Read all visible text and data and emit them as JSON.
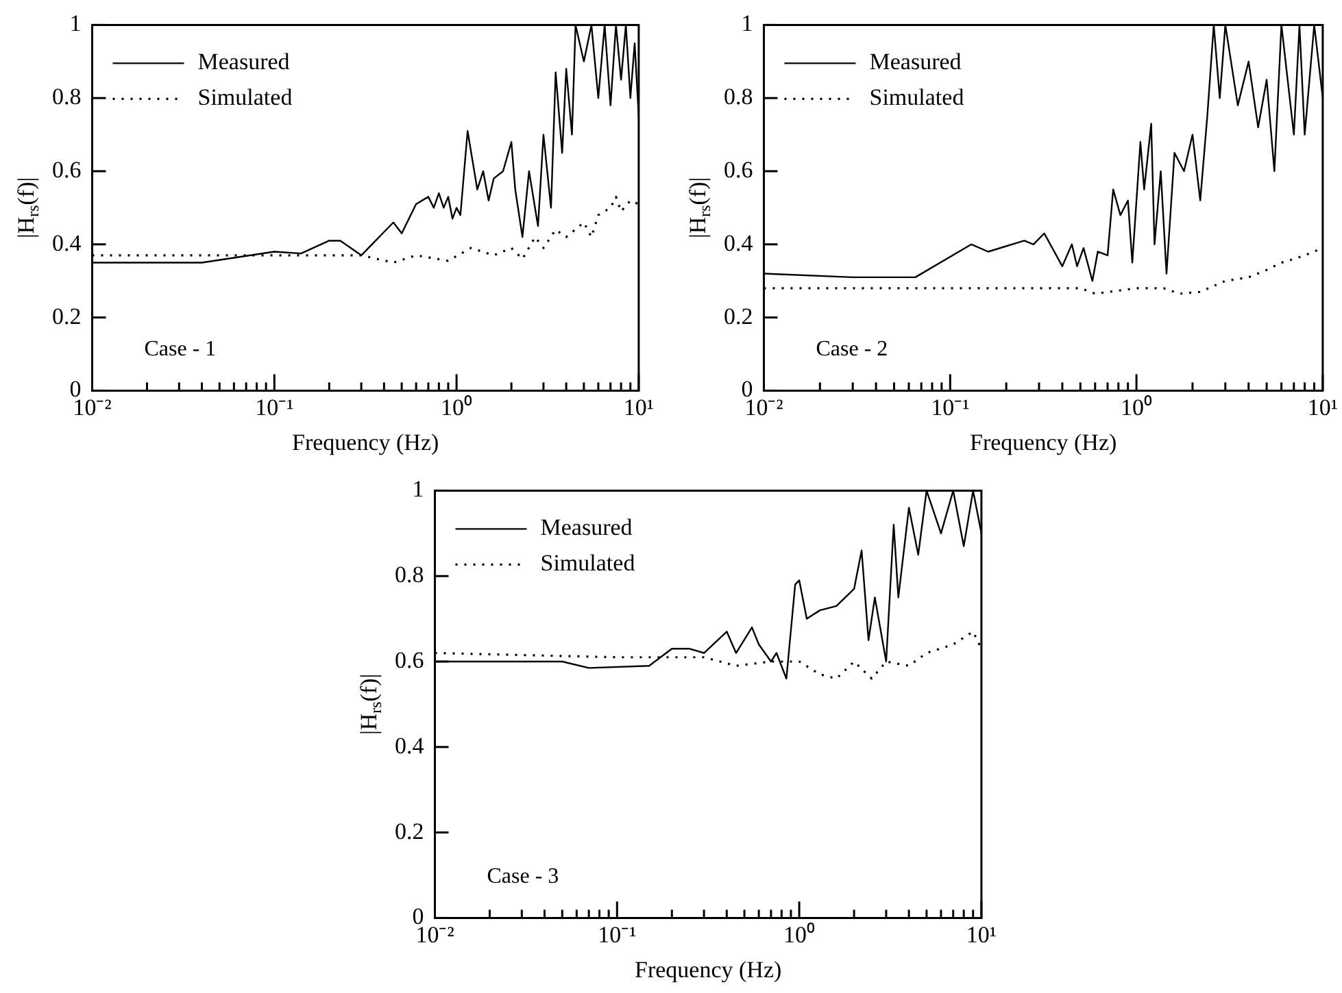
{
  "chart_data": [
    {
      "type": "line",
      "xlabel": "Frequency (Hz)",
      "ylabel": "|H$_{rs}$(f)|",
      "log": "x",
      "grid": false,
      "legend": "top left",
      "xlim": [
        0.01,
        10
      ],
      "ylim": [
        0,
        1
      ],
      "yticks": [
        0,
        0.2,
        0.4,
        0.6,
        0.8,
        1
      ],
      "xticks": [
        {
          "value": 0.01,
          "label": "10⁻²"
        },
        {
          "value": 0.02,
          "label": null
        },
        {
          "value": 0.03,
          "label": null
        },
        {
          "value": 0.04,
          "label": null
        },
        {
          "value": 0.05,
          "label": null
        },
        {
          "value": 0.06,
          "label": null
        },
        {
          "value": 0.07,
          "label": null
        },
        {
          "value": 0.08,
          "label": null
        },
        {
          "value": 0.09,
          "label": null
        },
        {
          "value": 0.1,
          "label": "10⁻¹"
        },
        {
          "value": 0.2,
          "label": null
        },
        {
          "value": 0.3,
          "label": null
        },
        {
          "value": 0.4,
          "label": null
        },
        {
          "value": 0.5,
          "label": null
        },
        {
          "value": 0.6,
          "label": null
        },
        {
          "value": 0.7,
          "label": null
        },
        {
          "value": 0.8,
          "label": null
        },
        {
          "value": 0.9,
          "label": null
        },
        {
          "value": 1,
          "label": "10⁰"
        },
        {
          "value": 2,
          "label": null
        },
        {
          "value": 3,
          "label": null
        },
        {
          "value": 4,
          "label": null
        },
        {
          "value": 5,
          "label": null
        },
        {
          "value": 6,
          "label": null
        },
        {
          "value": 7,
          "label": null
        },
        {
          "value": 8,
          "label": null
        },
        {
          "value": 9,
          "label": null
        },
        {
          "value": 10,
          "label": "10¹"
        }
      ],
      "annotations": [
        "Case - 1"
      ],
      "series": [
        {
          "name": "Measured",
          "color": "#000000",
          "line_style": "solid",
          "x": [
            0.01,
            0.04,
            0.1,
            0.14,
            0.2,
            0.23,
            0.3,
            0.45,
            0.5,
            0.6,
            0.7,
            0.75,
            0.8,
            0.85,
            0.9,
            0.95,
            1.0,
            1.05,
            1.15,
            1.3,
            1.4,
            1.5,
            1.6,
            1.8,
            2.0,
            2.1,
            2.3,
            2.5,
            2.8,
            3.0,
            3.3,
            3.5,
            3.8,
            4.0,
            4.3,
            4.5,
            5.0,
            5.5,
            6,
            6.5,
            7,
            7.5,
            8,
            8.5,
            9,
            9.5,
            10
          ],
          "values": [
            0.35,
            0.35,
            0.38,
            0.375,
            0.41,
            0.41,
            0.37,
            0.46,
            0.43,
            0.51,
            0.53,
            0.5,
            0.54,
            0.5,
            0.53,
            0.47,
            0.5,
            0.48,
            0.71,
            0.55,
            0.6,
            0.52,
            0.58,
            0.6,
            0.68,
            0.55,
            0.42,
            0.6,
            0.45,
            0.7,
            0.5,
            0.87,
            0.65,
            0.88,
            0.7,
            1.0,
            0.9,
            1.0,
            0.8,
            1.0,
            0.78,
            1.0,
            0.85,
            1.0,
            0.8,
            0.95,
            0.75
          ]
        },
        {
          "name": "Simulated",
          "color": "#000000",
          "line_style": "dotted",
          "x": [
            0.01,
            0.1,
            0.3,
            0.45,
            0.6,
            0.9,
            1.2,
            1.6,
            2.0,
            2.3,
            2.7,
            3.0,
            3.5,
            4.0,
            5.0,
            5.5,
            6,
            7,
            7.5,
            8,
            9,
            10
          ],
          "values": [
            0.37,
            0.37,
            0.37,
            0.35,
            0.37,
            0.355,
            0.39,
            0.37,
            0.39,
            0.36,
            0.42,
            0.39,
            0.44,
            0.42,
            0.46,
            0.42,
            0.48,
            0.5,
            0.53,
            0.49,
            0.52,
            0.51
          ]
        }
      ]
    },
    {
      "type": "line",
      "xlabel": "Frequency (Hz)",
      "ylabel": "|H$_{rs}$(f)|",
      "log": "x",
      "grid": false,
      "legend": "top left",
      "xlim": [
        0.01,
        10
      ],
      "ylim": [
        0,
        1
      ],
      "yticks": [
        0,
        0.2,
        0.4,
        0.6,
        0.8,
        1
      ],
      "xticks": [
        {
          "value": 0.01,
          "label": "10⁻²"
        },
        {
          "value": 0.02,
          "label": null
        },
        {
          "value": 0.03,
          "label": null
        },
        {
          "value": 0.04,
          "label": null
        },
        {
          "value": 0.05,
          "label": null
        },
        {
          "value": 0.06,
          "label": null
        },
        {
          "value": 0.07,
          "label": null
        },
        {
          "value": 0.08,
          "label": null
        },
        {
          "value": 0.09,
          "label": null
        },
        {
          "value": 0.1,
          "label": "10⁻¹"
        },
        {
          "value": 0.2,
          "label": null
        },
        {
          "value": 0.3,
          "label": null
        },
        {
          "value": 0.4,
          "label": null
        },
        {
          "value": 0.5,
          "label": null
        },
        {
          "value": 0.6,
          "label": null
        },
        {
          "value": 0.7,
          "label": null
        },
        {
          "value": 0.8,
          "label": null
        },
        {
          "value": 0.9,
          "label": null
        },
        {
          "value": 1,
          "label": "10⁰"
        },
        {
          "value": 2,
          "label": null
        },
        {
          "value": 3,
          "label": null
        },
        {
          "value": 4,
          "label": null
        },
        {
          "value": 5,
          "label": null
        },
        {
          "value": 6,
          "label": null
        },
        {
          "value": 7,
          "label": null
        },
        {
          "value": 8,
          "label": null
        },
        {
          "value": 9,
          "label": null
        },
        {
          "value": 10,
          "label": "10¹"
        }
      ],
      "annotations": [
        "Case - 2"
      ],
      "series": [
        {
          "name": "Measured",
          "color": "#000000",
          "line_style": "solid",
          "x": [
            0.01,
            0.03,
            0.065,
            0.13,
            0.16,
            0.25,
            0.28,
            0.32,
            0.4,
            0.45,
            0.48,
            0.52,
            0.58,
            0.62,
            0.7,
            0.75,
            0.82,
            0.9,
            0.95,
            1.05,
            1.1,
            1.2,
            1.25,
            1.35,
            1.45,
            1.6,
            1.8,
            2.0,
            2.2,
            2.4,
            2.6,
            2.8,
            3,
            3.5,
            4,
            4.5,
            5,
            5.5,
            6,
            7,
            7.5,
            8,
            9,
            10
          ],
          "values": [
            0.32,
            0.31,
            0.31,
            0.4,
            0.38,
            0.41,
            0.4,
            0.43,
            0.34,
            0.4,
            0.34,
            0.39,
            0.3,
            0.38,
            0.37,
            0.55,
            0.48,
            0.52,
            0.35,
            0.68,
            0.55,
            0.73,
            0.4,
            0.6,
            0.32,
            0.65,
            0.6,
            0.7,
            0.52,
            0.75,
            1.0,
            0.8,
            1.0,
            0.78,
            0.9,
            0.72,
            0.85,
            0.6,
            1.0,
            0.7,
            1.0,
            0.7,
            1.0,
            0.8
          ]
        },
        {
          "name": "Simulated",
          "color": "#000000",
          "line_style": "dotted",
          "x": [
            0.01,
            0.1,
            0.5,
            0.6,
            1.0,
            1.4,
            1.7,
            2.2,
            3,
            4,
            5,
            6,
            7,
            8,
            10
          ],
          "values": [
            0.28,
            0.28,
            0.28,
            0.265,
            0.28,
            0.28,
            0.265,
            0.27,
            0.3,
            0.31,
            0.33,
            0.35,
            0.36,
            0.37,
            0.39
          ]
        }
      ]
    },
    {
      "type": "line",
      "xlabel": "Frequency (Hz)",
      "ylabel": "|H$_{rs}$(f)|",
      "log": "x",
      "grid": false,
      "legend": "top left",
      "xlim": [
        0.01,
        10
      ],
      "ylim": [
        0,
        1
      ],
      "yticks": [
        0,
        0.2,
        0.4,
        0.6,
        0.8,
        1
      ],
      "xticks": [
        {
          "value": 0.01,
          "label": "10⁻²"
        },
        {
          "value": 0.02,
          "label": null
        },
        {
          "value": 0.03,
          "label": null
        },
        {
          "value": 0.04,
          "label": null
        },
        {
          "value": 0.05,
          "label": null
        },
        {
          "value": 0.06,
          "label": null
        },
        {
          "value": 0.07,
          "label": null
        },
        {
          "value": 0.08,
          "label": null
        },
        {
          "value": 0.09,
          "label": null
        },
        {
          "value": 0.1,
          "label": "10⁻¹"
        },
        {
          "value": 0.2,
          "label": null
        },
        {
          "value": 0.3,
          "label": null
        },
        {
          "value": 0.4,
          "label": null
        },
        {
          "value": 0.5,
          "label": null
        },
        {
          "value": 0.6,
          "label": null
        },
        {
          "value": 0.7,
          "label": null
        },
        {
          "value": 0.8,
          "label": null
        },
        {
          "value": 0.9,
          "label": null
        },
        {
          "value": 1,
          "label": "10⁰"
        },
        {
          "value": 2,
          "label": null
        },
        {
          "value": 3,
          "label": null
        },
        {
          "value": 4,
          "label": null
        },
        {
          "value": 5,
          "label": null
        },
        {
          "value": 6,
          "label": null
        },
        {
          "value": 7,
          "label": null
        },
        {
          "value": 8,
          "label": null
        },
        {
          "value": 9,
          "label": null
        },
        {
          "value": 10,
          "label": "10¹"
        }
      ],
      "annotations": [
        "Case - 3"
      ],
      "series": [
        {
          "name": "Measured",
          "color": "#000000",
          "line_style": "solid",
          "x": [
            0.01,
            0.05,
            0.07,
            0.15,
            0.2,
            0.25,
            0.3,
            0.4,
            0.45,
            0.55,
            0.6,
            0.7,
            0.75,
            0.85,
            0.95,
            1.0,
            1.1,
            1.3,
            1.6,
            2.0,
            2.2,
            2.4,
            2.6,
            3,
            3.3,
            3.5,
            4,
            4.5,
            5,
            6,
            7,
            8,
            9,
            10
          ],
          "values": [
            0.6,
            0.6,
            0.585,
            0.59,
            0.63,
            0.63,
            0.62,
            0.67,
            0.62,
            0.68,
            0.64,
            0.6,
            0.62,
            0.56,
            0.78,
            0.79,
            0.7,
            0.72,
            0.73,
            0.77,
            0.86,
            0.65,
            0.75,
            0.6,
            0.92,
            0.75,
            0.96,
            0.85,
            1.0,
            0.9,
            1.0,
            0.87,
            1.0,
            0.9
          ]
        },
        {
          "name": "Simulated",
          "color": "#000000",
          "line_style": "dotted",
          "x": [
            0.01,
            0.1,
            0.3,
            0.45,
            0.7,
            1.0,
            1.3,
            1.6,
            2,
            2.5,
            3,
            4,
            5,
            7,
            9,
            10
          ],
          "values": [
            0.62,
            0.61,
            0.61,
            0.59,
            0.6,
            0.6,
            0.57,
            0.56,
            0.6,
            0.56,
            0.6,
            0.59,
            0.62,
            0.64,
            0.67,
            0.63
          ]
        }
      ]
    }
  ]
}
